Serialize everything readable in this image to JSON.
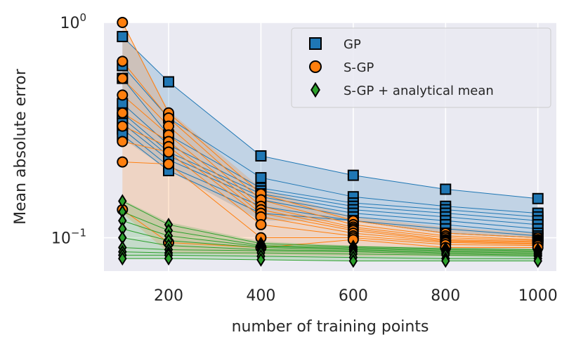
{
  "chart_data": {
    "type": "scatter",
    "xlabel": "number of training points",
    "ylabel": "Mean absolute error",
    "x_ticks": [
      200,
      400,
      600,
      800,
      1000
    ],
    "x_tick_labels": [
      "200",
      "400",
      "600",
      "800",
      "1000"
    ],
    "xlim": [
      60,
      1040
    ],
    "y_scale": "log",
    "ylim": [
      0.07,
      1.0
    ],
    "y_ticks": [
      {
        "value": 1.0,
        "base": "10",
        "exp": "0"
      },
      {
        "value": 0.1,
        "base": "10",
        "exp": "−1"
      }
    ],
    "grid": true,
    "legend_position": "top-right",
    "x": [
      100,
      200,
      400,
      600,
      800,
      1000
    ],
    "series": [
      {
        "name": "GP",
        "marker": "square",
        "color": "#1f77b4",
        "band": [
          [
            0.29,
            0.86
          ],
          [
            0.205,
            0.53
          ],
          [
            0.12,
            0.24
          ],
          [
            0.12,
            0.195
          ],
          [
            0.105,
            0.168
          ],
          [
            0.1,
            0.152
          ]
        ],
        "runs": [
          [
            0.86,
            0.53,
            0.24,
            0.195,
            0.168,
            0.152
          ],
          [
            0.63,
            0.36,
            0.19,
            0.155,
            0.14,
            0.13
          ],
          [
            0.55,
            0.3,
            0.17,
            0.145,
            0.135,
            0.125
          ],
          [
            0.42,
            0.27,
            0.165,
            0.14,
            0.13,
            0.12
          ],
          [
            0.38,
            0.25,
            0.16,
            0.135,
            0.125,
            0.115
          ],
          [
            0.36,
            0.24,
            0.155,
            0.13,
            0.12,
            0.11
          ],
          [
            0.34,
            0.23,
            0.15,
            0.125,
            0.115,
            0.105
          ],
          [
            0.32,
            0.215,
            0.14,
            0.12,
            0.11,
            0.102
          ],
          [
            0.3,
            0.205,
            0.13,
            0.12,
            0.105,
            0.1
          ]
        ]
      },
      {
        "name": "S-GP",
        "marker": "circle",
        "color": "#ff7f0e",
        "band": [
          [
            0.13,
            1.0
          ],
          [
            0.085,
            0.39
          ],
          [
            0.083,
            0.17
          ],
          [
            0.082,
            0.125
          ],
          [
            0.082,
            0.112
          ],
          [
            0.082,
            0.105
          ]
        ],
        "runs": [
          [
            1.0,
            0.38,
            0.16,
            0.12,
            0.105,
            0.1
          ],
          [
            0.66,
            0.36,
            0.15,
            0.115,
            0.102,
            0.098
          ],
          [
            0.55,
            0.33,
            0.14,
            0.112,
            0.1,
            0.097
          ],
          [
            0.46,
            0.3,
            0.135,
            0.11,
            0.098,
            0.096
          ],
          [
            0.38,
            0.28,
            0.13,
            0.108,
            0.097,
            0.095
          ],
          [
            0.33,
            0.265,
            0.125,
            0.105,
            0.096,
            0.094
          ],
          [
            0.28,
            0.25,
            0.115,
            0.102,
            0.095,
            0.093
          ],
          [
            0.225,
            0.22,
            0.1,
            0.1,
            0.093,
            0.092
          ],
          [
            0.135,
            0.095,
            0.09,
            0.098,
            0.09,
            0.09
          ]
        ]
      },
      {
        "name": "S-GP + analytical mean",
        "marker": "diamond",
        "color": "#2ca02c",
        "band": [
          [
            0.08,
            0.15
          ],
          [
            0.08,
            0.118
          ],
          [
            0.079,
            0.096
          ],
          [
            0.078,
            0.092
          ],
          [
            0.078,
            0.09
          ],
          [
            0.078,
            0.089
          ]
        ],
        "runs": [
          [
            0.148,
            0.115,
            0.094,
            0.091,
            0.089,
            0.088
          ],
          [
            0.132,
            0.108,
            0.092,
            0.09,
            0.088,
            0.087
          ],
          [
            0.12,
            0.102,
            0.091,
            0.089,
            0.087,
            0.086
          ],
          [
            0.11,
            0.097,
            0.09,
            0.088,
            0.086,
            0.085
          ],
          [
            0.1,
            0.092,
            0.088,
            0.087,
            0.085,
            0.084
          ],
          [
            0.09,
            0.088,
            0.087,
            0.086,
            0.084,
            0.083
          ],
          [
            0.086,
            0.085,
            0.085,
            0.084,
            0.083,
            0.082
          ],
          [
            0.083,
            0.083,
            0.082,
            0.081,
            0.08,
            0.08
          ],
          [
            0.08,
            0.08,
            0.079,
            0.078,
            0.078,
            0.078
          ]
        ]
      }
    ]
  }
}
